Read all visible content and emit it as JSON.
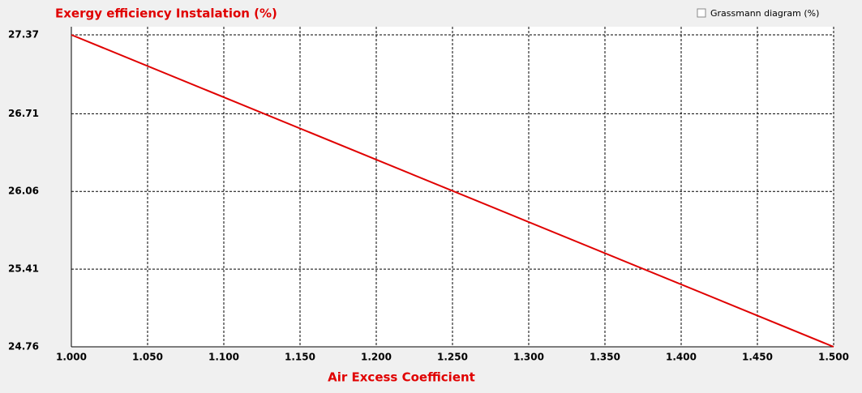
{
  "chart_data": {
    "type": "line",
    "title": "Exergy efficiency Instalation (%)",
    "xlabel": "Air Excess Coefficient",
    "x": [
      1.0,
      1.5
    ],
    "series": [
      {
        "name": "Exergy efficiency",
        "color": "#e00000",
        "values": [
          27.37,
          24.76
        ]
      }
    ],
    "xlim": [
      1.0,
      1.5
    ],
    "xticks": [
      {
        "value": 1.0,
        "label": "1.000"
      },
      {
        "value": 1.05,
        "label": "1.050"
      },
      {
        "value": 1.1,
        "label": "1.100"
      },
      {
        "value": 1.15,
        "label": "1.150"
      },
      {
        "value": 1.2,
        "label": "1.200"
      },
      {
        "value": 1.25,
        "label": "1.250"
      },
      {
        "value": 1.3,
        "label": "1.300"
      },
      {
        "value": 1.35,
        "label": "1.350"
      },
      {
        "value": 1.4,
        "label": "1.400"
      },
      {
        "value": 1.45,
        "label": "1.450"
      },
      {
        "value": 1.5,
        "label": "1.500"
      }
    ],
    "ylim": [
      24.76,
      27.37
    ],
    "yticks": [
      27.37,
      26.71,
      26.06,
      25.41,
      24.76
    ],
    "grid": true
  },
  "controls": {
    "grassmann_checkbox": "Grassmann diagram (%)"
  }
}
